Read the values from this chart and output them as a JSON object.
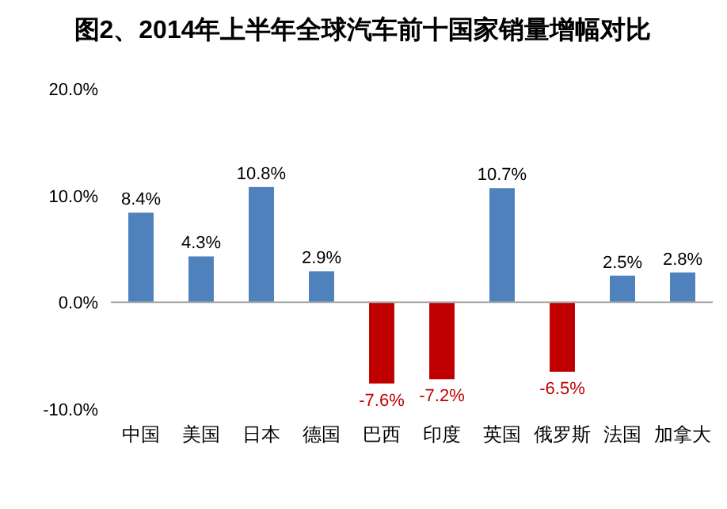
{
  "chart_data": {
    "type": "bar",
    "title": "图2、2014年上半年全球汽车前十国家销量增幅对比",
    "categories": [
      "中国",
      "美国",
      "日本",
      "德国",
      "巴西",
      "印度",
      "英国",
      "俄罗斯",
      "法国",
      "加拿大"
    ],
    "values": [
      8.4,
      4.3,
      10.8,
      2.9,
      -7.6,
      -7.2,
      10.7,
      -6.5,
      2.5,
      2.8
    ],
    "colors": [
      "#4f81bd",
      "#4f81bd",
      "#4f81bd",
      "#4f81bd",
      "#c00000",
      "#c00000",
      "#4f81bd",
      "#c00000",
      "#4f81bd",
      "#4f81bd"
    ],
    "value_labels": [
      "8.4%",
      "4.3%",
      "10.8%",
      "2.9%",
      "-7.6%",
      "-7.2%",
      "10.7%",
      "-6.5%",
      "2.5%",
      "2.8%"
    ],
    "ylim": [
      -10,
      20
    ],
    "yticks": [
      {
        "value": -10,
        "label": "-10.0%"
      },
      {
        "value": 0,
        "label": "0.0%"
      },
      {
        "value": 10,
        "label": "10.0%"
      },
      {
        "value": 20,
        "label": "20.0%"
      }
    ]
  }
}
